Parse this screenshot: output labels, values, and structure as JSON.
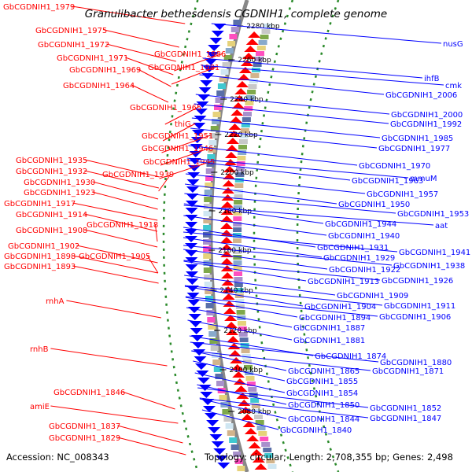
{
  "title": "Granulibacter bethesdensis CGDNIH1, complete genome",
  "footer": {
    "accession": "Accession: NC_008343",
    "topology": "Topology: circular; Length: 2,708,355 bp; Genes: 2,498"
  },
  "colors": {
    "forward": "#ff0000",
    "reverse": "#0000ff",
    "axis": "#888888",
    "grid": "#2a8a2a"
  },
  "kbp_ticks": [
    "2280 kbp",
    "2260 kbp",
    "2240 kbp",
    "2220 kbp",
    "2200 kbp",
    "2180 kbp",
    "2160 kbp",
    "2140 kbp",
    "2120 kbp",
    "2100 kbp",
    "2080 kbp"
  ],
  "left_labels": [
    "GbCGDNIH1_1979",
    "GbCGDNIH1_1975",
    "GbCGDNIH1_1972",
    "GbCGDNIH1_1971",
    "GbCGDNIH1_1969",
    "GbCGDNIH1_1986",
    "GbCGDNIH1_1981",
    "GbCGDNIH1_1964",
    "GbCGDNIH1_1965",
    "thiG",
    "GbCGDNIH1_1951",
    "GbCGDNIH1_1946",
    "GbCGDNIH1_1945",
    "GbCGDNIH1_1935",
    "GbCGDNIH1_1932",
    "GbCGDNIH1_1939",
    "GbCGDNIH1_1930",
    "GbCGDNIH1_1923",
    "GbCGDNIH1_1917",
    "GbCGDNIH1_1914",
    "GbCGDNIH1_1918",
    "GbCGDNIH1_1908",
    "GbCGDNIH1_1902",
    "GbCGDNIH1_1898",
    "GbCGDNIH1_1905",
    "GbCGDNIH1_1893",
    "rnhA",
    "rnhB",
    "GbCGDNIH1_1846",
    "amiE",
    "GbCGDNIH1_1837",
    "GbCGDNIH1_1829"
  ],
  "right_labels": [
    "nusG",
    "ihfB",
    "cmk",
    "GbCGDNIH1_2006",
    "GbCGDNIH1_2000",
    "GbCGDNIH1_1992",
    "GbCGDNIH1_1985",
    "GbCGDNIH1_1977",
    "GbCGDNIH1_1970",
    "mmuM",
    "GbCGDNIH1_1963",
    "GbCGDNIH1_1957",
    "GbCGDNIH1_1950",
    "GbCGDNIH1_1953",
    "GbCGDNIH1_1944",
    "aat",
    "GbCGDNIH1_1940",
    "GbCGDNIH1_1931",
    "GbCGDNIH1_1941",
    "GbCGDNIH1_1929",
    "GbCGDNIH1_1938",
    "GbCGDNIH1_1922",
    "GbCGDNIH1_1913",
    "GbCGDNIH1_1926",
    "GbCGDNIH1_1909",
    "GbCGDNIH1_1904",
    "GbCGDNIH1_1911",
    "GbCGDNIH1_1894",
    "GbCGDNIH1_1906",
    "GbCGDNIH1_1887",
    "GbCGDNIH1_1881",
    "GbCGDNIH1_1874",
    "GbCGDNIH1_1880",
    "GbCGDNIH1_1865",
    "GbCGDNIH1_1871",
    "GbCGDNIH1_1855",
    "GbCGDNIH1_1854",
    "GbCGDNIH1_1852",
    "GbCGDNIH1_1850",
    "GbCGDNIH1_1847",
    "GbCGDNIH1_1844",
    "GbCGDNIH1_1840"
  ]
}
